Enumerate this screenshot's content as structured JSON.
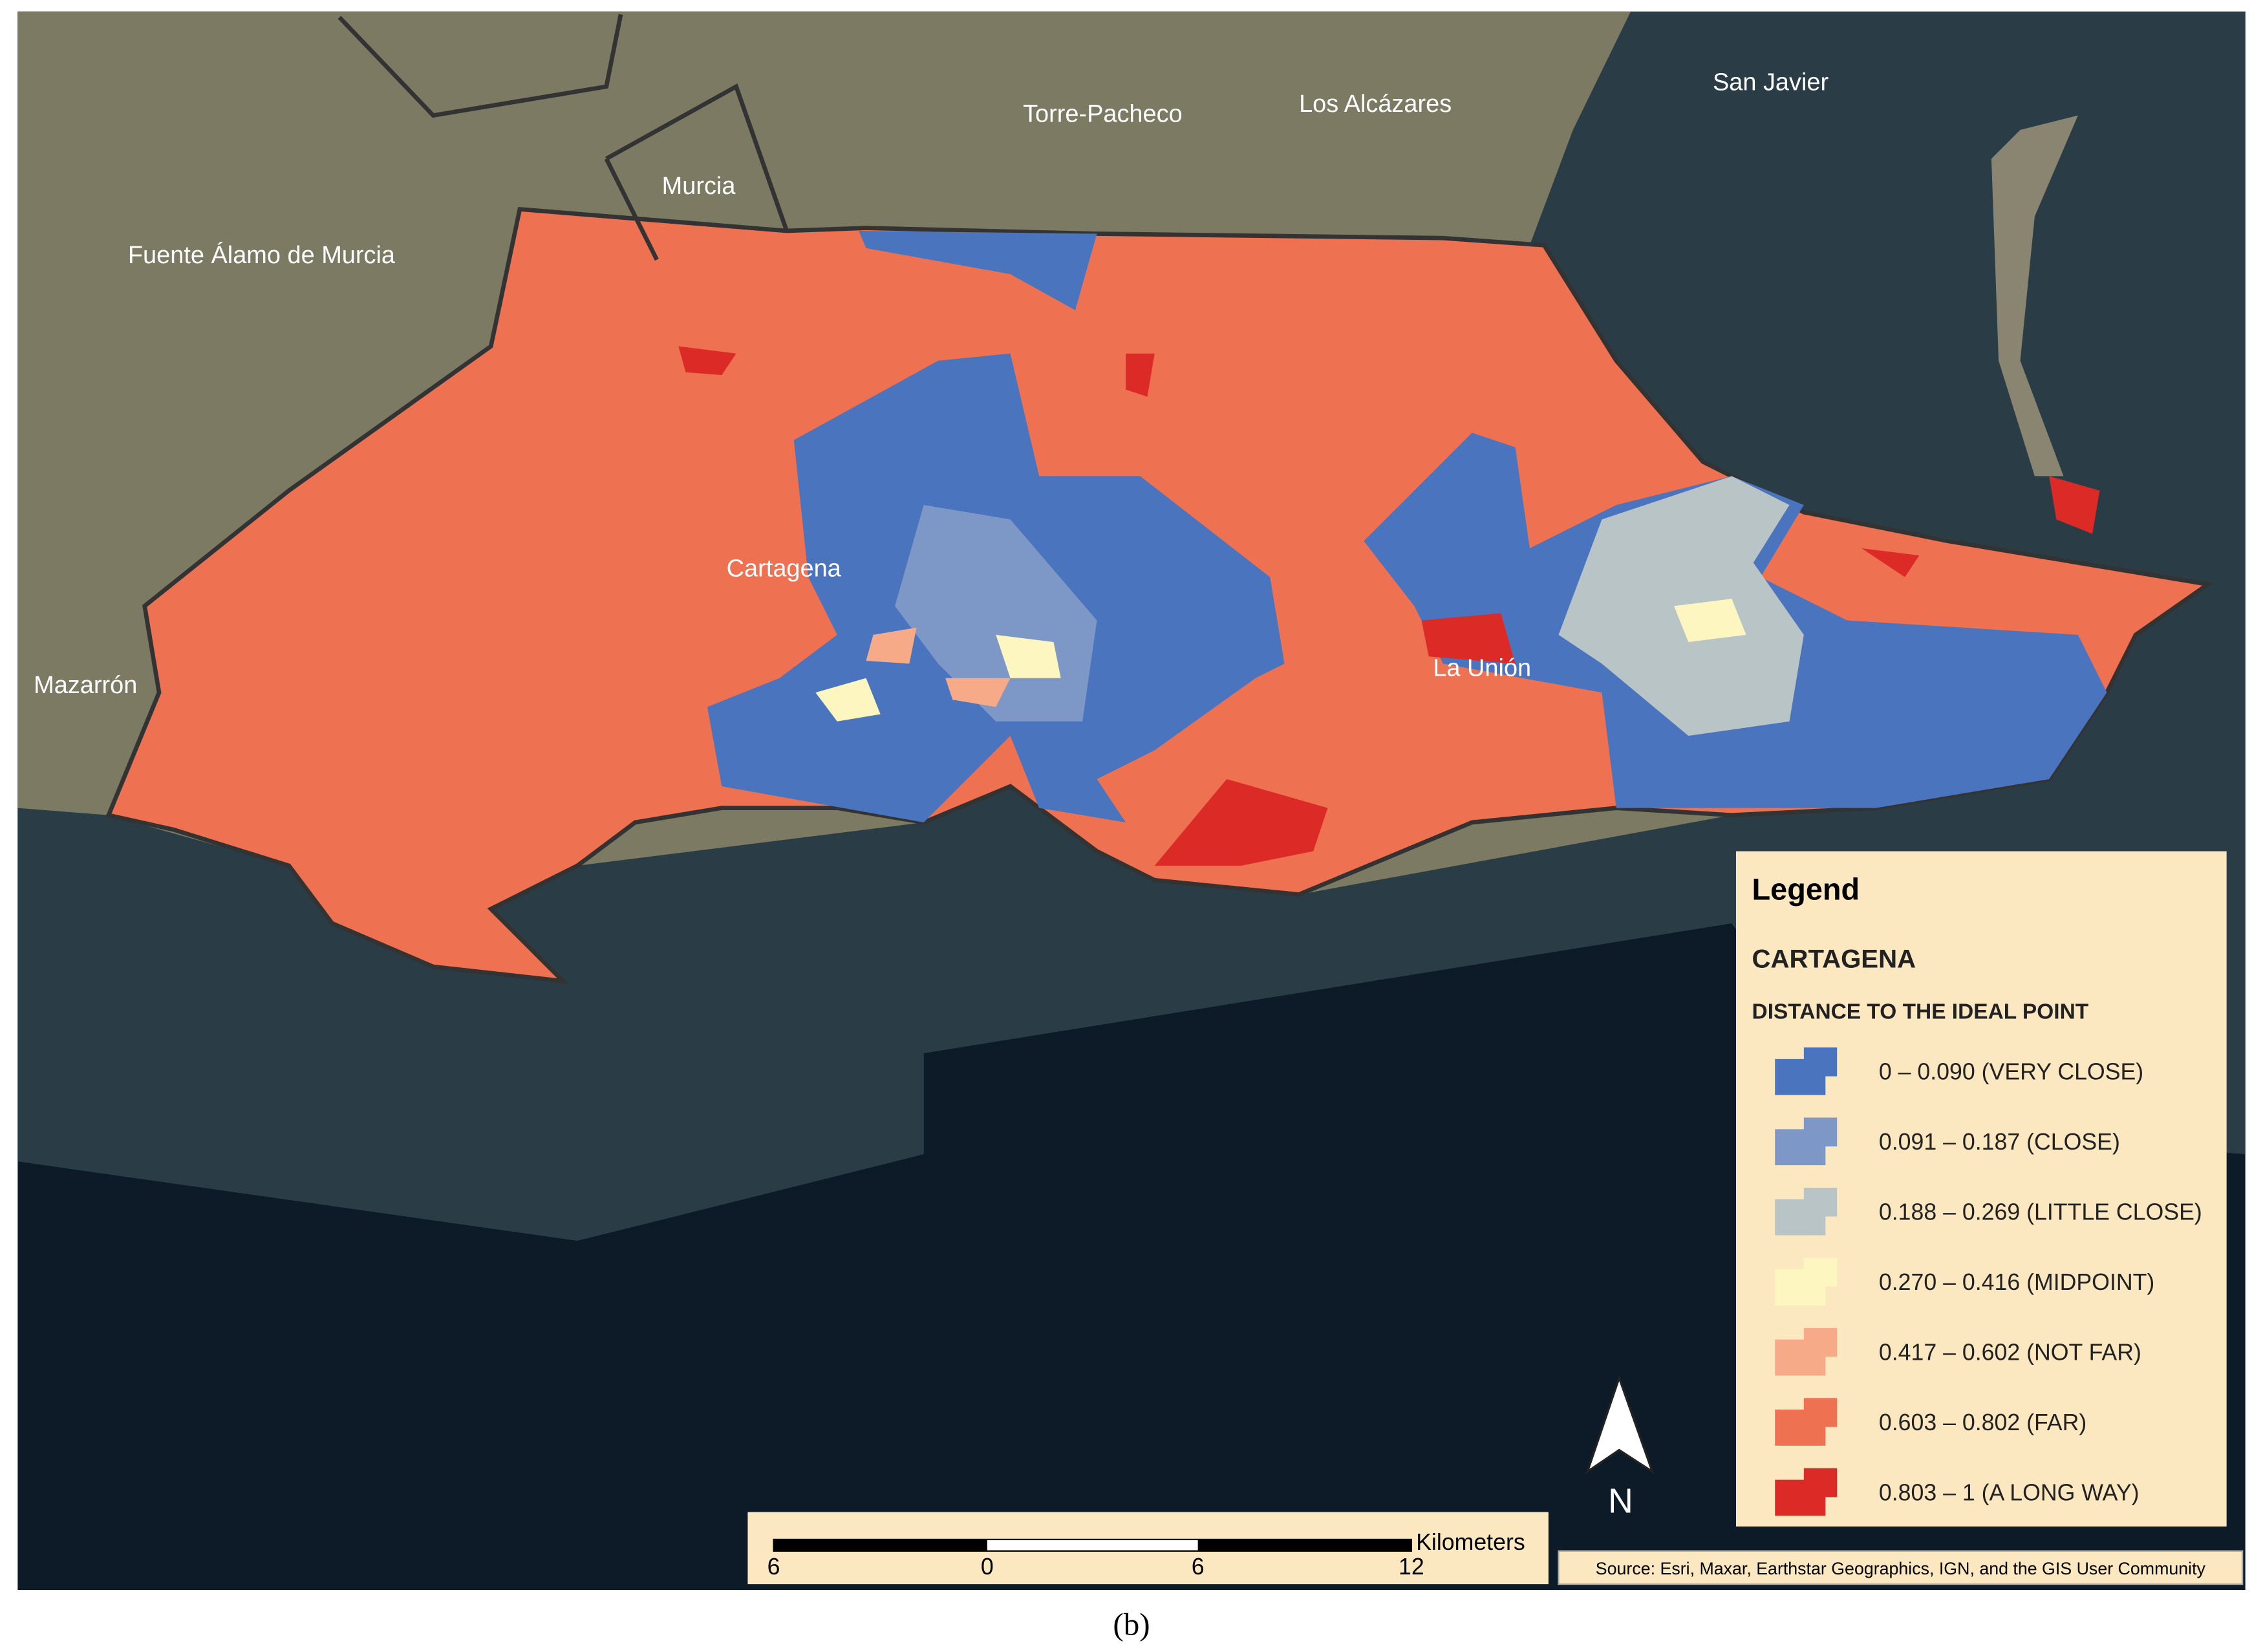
{
  "places": [
    {
      "label": "Torre-Pacheco"
    },
    {
      "label": "Los Alcázares"
    },
    {
      "label": "San Javier"
    },
    {
      "label": "Murcia"
    },
    {
      "label": "Fuente Álamo de Murcia"
    },
    {
      "label": "Cartagena"
    },
    {
      "label": "Mazarrón"
    },
    {
      "label": "La Unión"
    }
  ],
  "legend": {
    "title": "Legend",
    "municipality": "CARTAGENA",
    "subtitle": "DISTANCE TO THE IDEAL POINT",
    "classes": [
      {
        "label": "0 – 0.090 (VERY CLOSE)",
        "color": "#4a74bd"
      },
      {
        "label": "0.091 – 0.187 (CLOSE)",
        "color": "#7d97c6"
      },
      {
        "label": "0.188 – 0.269 (LITTLE CLOSE)",
        "color": "#b9c4c6"
      },
      {
        "label": "0.270 – 0.416 (MIDPOINT)",
        "color": "#fdf6c0"
      },
      {
        "label": "0.417 – 0.602 (NOT FAR)",
        "color": "#f6aa88"
      },
      {
        "label": "0.603 – 0.802 (FAR)",
        "color": "#ee7152"
      },
      {
        "label": "0.803 – 1 (A LONG WAY)",
        "color": "#dc2b27"
      }
    ]
  },
  "scale_bar": {
    "unit": "Kilometers",
    "labels": [
      "6",
      "0",
      "6",
      "12"
    ]
  },
  "north": "N",
  "source": "Source: Esri, Maxar, Earthstar Geographics, IGN, and the GIS User Community",
  "caption": "(b)"
}
